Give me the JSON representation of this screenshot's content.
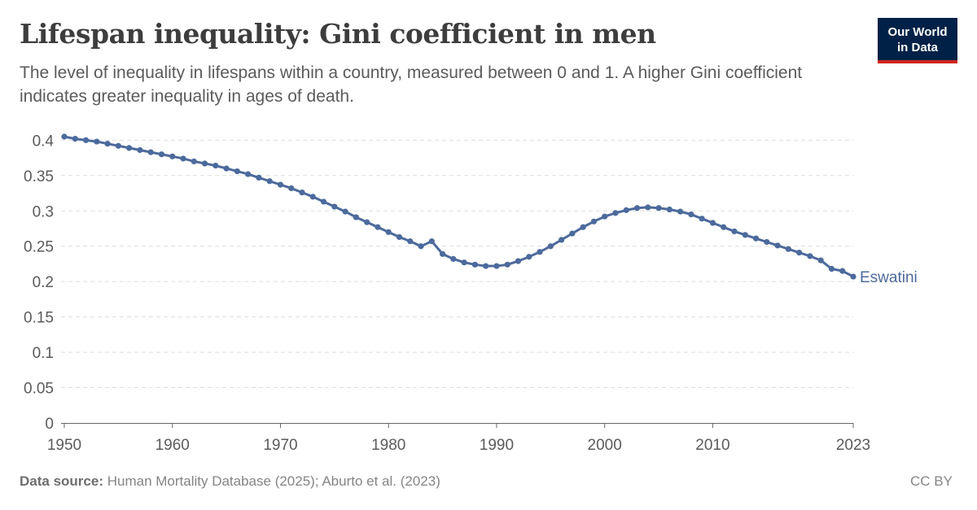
{
  "header": {
    "title": "Lifespan inequality: Gini coefficient in men",
    "subtitle": "The level of inequality in lifespans within a country, measured between 0 and 1. A higher Gini coefficient indicates greater inequality in ages of death.",
    "logo_line1": "Our World",
    "logo_line2": "in Data"
  },
  "footer": {
    "source_label": "Data source:",
    "source_text": "Human Mortality Database (2025); Aburto et al. (2023)",
    "license": "CC BY"
  },
  "colors": {
    "series": "#4c6a9c",
    "grid": "#dddddd",
    "axis": "#666666",
    "text": "#5b5b5b",
    "logo_bg": "#002147",
    "logo_accent": "#ce261e"
  },
  "chart_data": {
    "type": "line",
    "title": "Lifespan inequality: Gini coefficient in men",
    "xlim": [
      1949,
      1950,
      2023
    ],
    "ylim": [
      0,
      0.4
    ],
    "x_ticks": [
      1950,
      1960,
      1970,
      1980,
      1990,
      2000,
      2010,
      2023
    ],
    "x_tick_labels": [
      "1950",
      "1960",
      "1970",
      "1980",
      "1990",
      "2000",
      "2010",
      "2023"
    ],
    "y_ticks": [
      0,
      0.05,
      0.1,
      0.15,
      0.2,
      0.25,
      0.3,
      0.35,
      0.4
    ],
    "y_tick_labels": [
      "0",
      "0.05",
      "0.1",
      "0.15",
      "0.2",
      "0.25",
      "0.3",
      "0.35",
      "0.4"
    ],
    "grid": "horizontal-dashed",
    "series": [
      {
        "name": "Eswatini",
        "x": [
          1950,
          1951,
          1952,
          1953,
          1954,
          1955,
          1956,
          1957,
          1958,
          1959,
          1960,
          1961,
          1962,
          1963,
          1964,
          1965,
          1966,
          1967,
          1968,
          1969,
          1970,
          1971,
          1972,
          1973,
          1974,
          1975,
          1976,
          1977,
          1978,
          1979,
          1980,
          1981,
          1982,
          1983,
          1984,
          1985,
          1986,
          1987,
          1988,
          1989,
          1990,
          1991,
          1992,
          1993,
          1994,
          1995,
          1996,
          1997,
          1998,
          1999,
          2000,
          2001,
          2002,
          2003,
          2004,
          2005,
          2006,
          2007,
          2008,
          2009,
          2010,
          2011,
          2012,
          2013,
          2014,
          2015,
          2016,
          2017,
          2018,
          2019,
          2020,
          2021,
          2022,
          2023
        ],
        "y": [
          0.405,
          0.402,
          0.4,
          0.398,
          0.395,
          0.392,
          0.389,
          0.386,
          0.383,
          0.38,
          0.377,
          0.374,
          0.37,
          0.367,
          0.364,
          0.36,
          0.356,
          0.352,
          0.347,
          0.342,
          0.337,
          0.332,
          0.326,
          0.32,
          0.313,
          0.306,
          0.299,
          0.291,
          0.284,
          0.277,
          0.27,
          0.263,
          0.257,
          0.25,
          0.257,
          0.239,
          0.232,
          0.227,
          0.224,
          0.222,
          0.222,
          0.224,
          0.229,
          0.235,
          0.242,
          0.25,
          0.259,
          0.268,
          0.277,
          0.285,
          0.292,
          0.297,
          0.301,
          0.304,
          0.305,
          0.304,
          0.302,
          0.299,
          0.295,
          0.289,
          0.283,
          0.277,
          0.271,
          0.266,
          0.261,
          0.256,
          0.251,
          0.246,
          0.241,
          0.236,
          0.23,
          0.218,
          0.215,
          0.207
        ]
      }
    ]
  }
}
